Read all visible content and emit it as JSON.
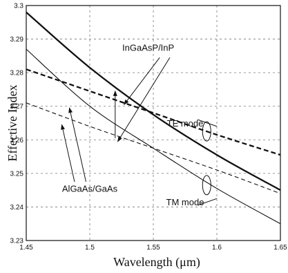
{
  "chart_data": {
    "type": "line",
    "xlabel": "Wavelength (μm)",
    "ylabel": "Effective Index",
    "xlim": [
      1.45,
      1.65
    ],
    "ylim": [
      3.23,
      3.3
    ],
    "x_ticks": [
      "1.45",
      "1.5",
      "1.55",
      "1.6",
      "1.65"
    ],
    "y_ticks": [
      "3.23",
      "3.24",
      "3.25",
      "3.26",
      "3.27",
      "3.28",
      "3.29",
      "3.3"
    ],
    "grid": true,
    "series": [
      {
        "style": "solid-thick",
        "color": "#111111",
        "x": [
          1.45,
          1.5,
          1.55,
          1.6,
          1.65
        ],
        "y": [
          3.298,
          3.2815,
          3.2675,
          3.2555,
          3.245
        ]
      },
      {
        "style": "solid-thin",
        "color": "#111111",
        "x": [
          1.45,
          1.5,
          1.55,
          1.6,
          1.65
        ],
        "y": [
          3.287,
          3.27,
          3.2575,
          3.2455,
          3.235
        ]
      },
      {
        "style": "dashed-thick",
        "color": "#111111",
        "x": [
          1.45,
          1.5,
          1.55,
          1.6,
          1.65
        ],
        "y": [
          3.281,
          3.2745,
          3.268,
          3.2615,
          3.2555
        ]
      },
      {
        "style": "dashed-thin",
        "color": "#111111",
        "x": [
          1.45,
          1.5,
          1.55,
          1.6,
          1.65
        ],
        "y": [
          3.271,
          3.264,
          3.2575,
          3.251,
          3.244
        ]
      }
    ],
    "annotations": [
      {
        "text": "InGaAsP/InP",
        "x": 1.546,
        "y": 3.2865
      },
      {
        "text": "TE mode",
        "x": 1.575,
        "y": 3.264
      },
      {
        "text": "AlGaAs/GaAs",
        "x": 1.5,
        "y": 3.2445
      },
      {
        "text": "TM mode",
        "x": 1.575,
        "y": 3.2405
      }
    ],
    "arrows": [
      {
        "from": [
          1.555,
          3.2845
        ],
        "to": [
          1.527,
          3.2705
        ]
      },
      {
        "from": [
          1.563,
          3.2845
        ],
        "to": [
          1.522,
          3.2595
        ]
      },
      {
        "from": [
          1.52,
          3.2605
        ],
        "to": [
          1.52,
          3.2745
        ]
      },
      {
        "from": [
          1.488,
          3.2475
        ],
        "to": [
          1.478,
          3.2645
        ]
      },
      {
        "from": [
          1.497,
          3.2475
        ],
        "to": [
          1.484,
          3.2695
        ]
      }
    ],
    "mode_ellipses": [
      {
        "x": 1.592,
        "y": 3.2625
      },
      {
        "x": 1.592,
        "y": 3.2465
      }
    ],
    "leaders": [
      {
        "from": [
          1.585,
          3.266
        ],
        "to": [
          1.6,
          3.264
        ]
      },
      {
        "from": [
          1.585,
          3.2405
        ],
        "to": [
          1.6,
          3.2425
        ]
      }
    ]
  }
}
